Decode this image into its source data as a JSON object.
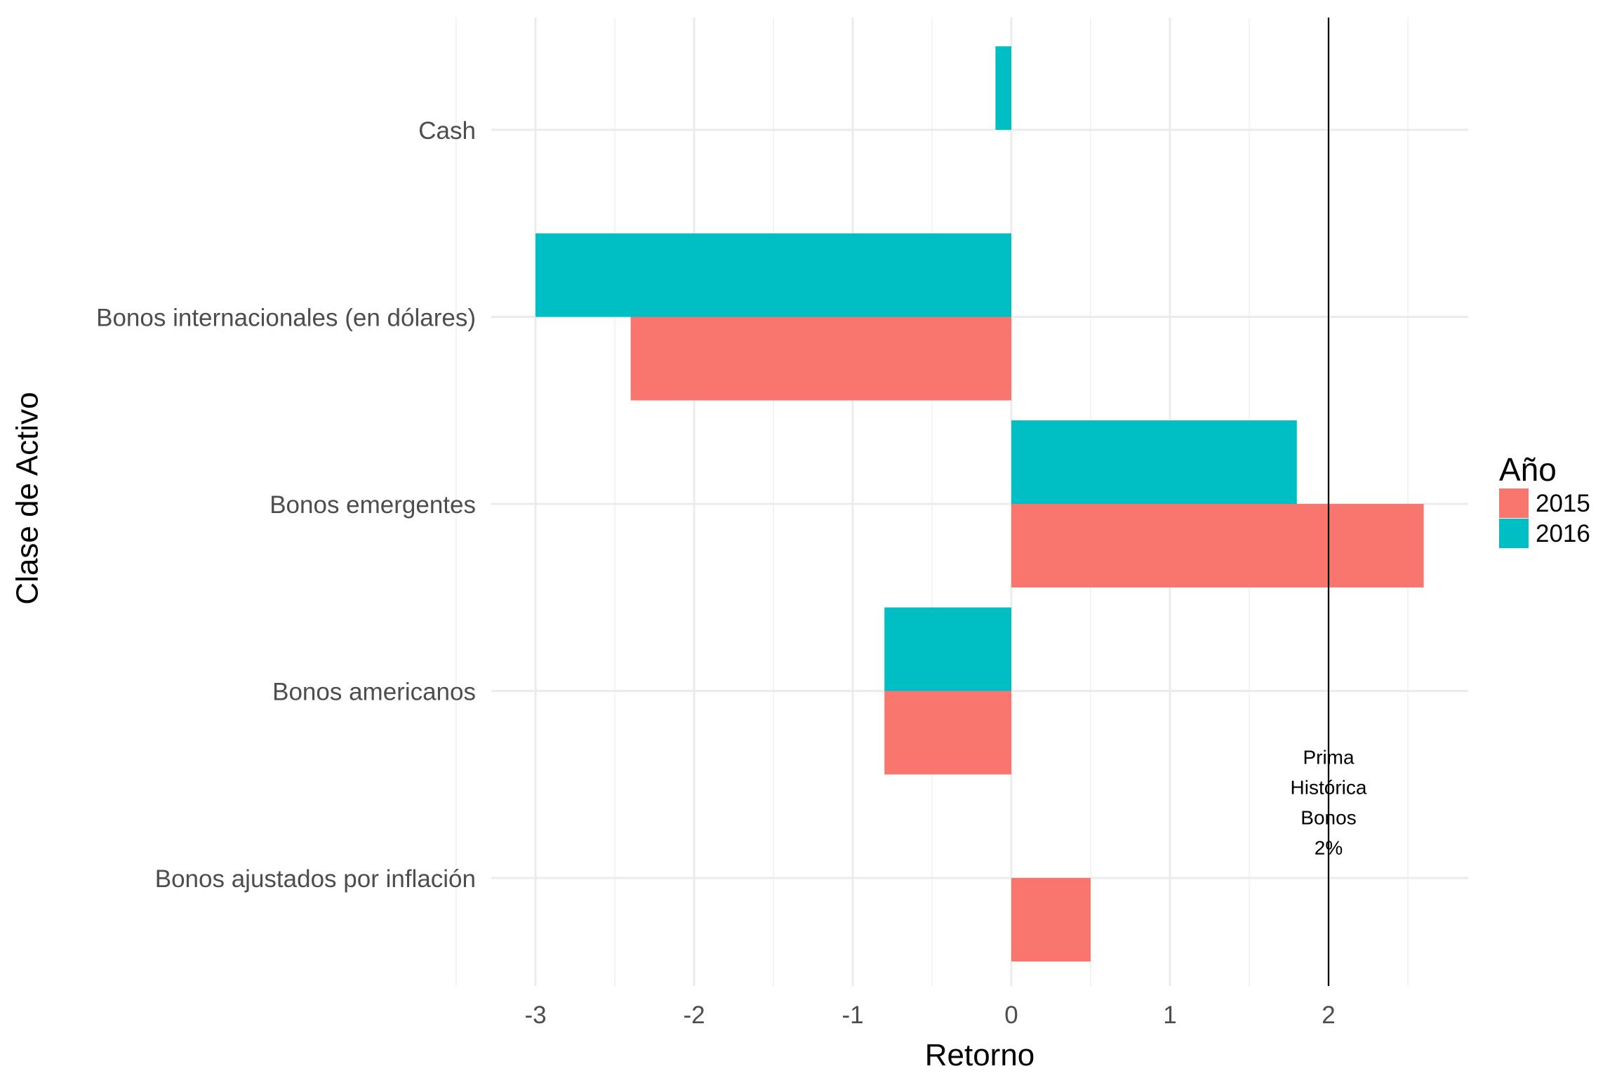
{
  "chart_data": {
    "type": "bar",
    "orientation": "horizontal",
    "xlabel": "Retorno",
    "ylabel": "Clase de Activo",
    "xlim": [
      -3.3,
      2.9
    ],
    "x_ticks": [
      -3,
      -2,
      -1,
      0,
      1,
      2
    ],
    "x_tick_labels": [
      "-3",
      "-2",
      "-1",
      "0",
      "1",
      "2"
    ],
    "grid": true,
    "categories": [
      "Cash",
      "Bonos internacionales (en dólares)",
      "Bonos emergentes",
      "Bonos americanos",
      "Bonos ajustados por inflación"
    ],
    "series": [
      {
        "name": "2015",
        "color": "#F8766D",
        "values": [
          null,
          -2.4,
          2.6,
          -0.8,
          0.5
        ]
      },
      {
        "name": "2016",
        "color": "#00BFC4",
        "values": [
          -0.1,
          -3.0,
          1.8,
          -0.8,
          null
        ]
      }
    ],
    "legend": {
      "title": "Año",
      "position": "right"
    },
    "reference_line": {
      "x": 2,
      "color": "#000000"
    },
    "annotation": {
      "lines": [
        "Prima",
        "Histórica",
        "Bonos",
        "2%"
      ],
      "x": 2,
      "y_category_position": 3.6
    }
  }
}
